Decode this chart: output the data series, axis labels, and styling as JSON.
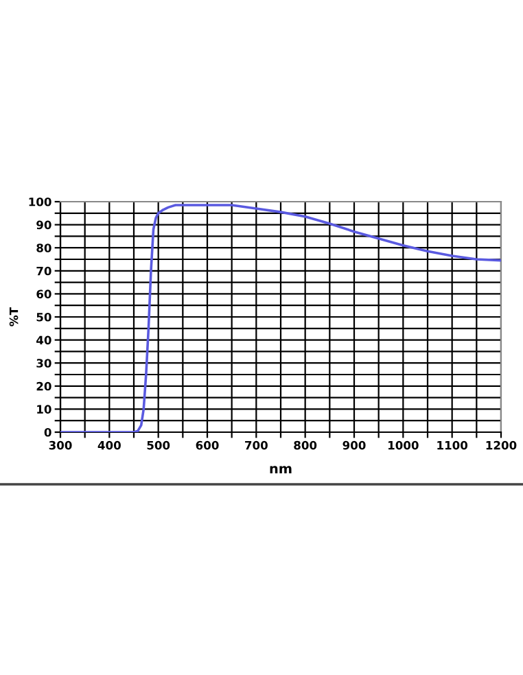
{
  "chart_data": {
    "type": "line",
    "xlabel": "nm",
    "ylabel": "%T",
    "series": [
      {
        "color": "#5a5ae0",
        "x": [
          300,
          350,
          400,
          450,
          458,
          465,
          470,
          475,
          480,
          485,
          490,
          495,
          500,
          510,
          520,
          535,
          550,
          600,
          650,
          700,
          750,
          800,
          850,
          900,
          950,
          1000,
          1050,
          1100,
          1150,
          1200
        ],
        "values": [
          0,
          0,
          0,
          0,
          0.5,
          3,
          10,
          25,
          45,
          70,
          88,
          93,
          95,
          96.5,
          97.5,
          98.5,
          98.5,
          98.5,
          98.5,
          97,
          95.5,
          93.5,
          90.5,
          87,
          84,
          81,
          78.5,
          76.5,
          75,
          74.5
        ]
      }
    ],
    "xlim": [
      300,
      1200
    ],
    "ylim": [
      0,
      100
    ],
    "xticks": [
      300,
      {
        "value": 350,
        "label": null
      },
      400,
      {
        "value": 450,
        "label": null
      },
      500,
      {
        "value": 550,
        "label": null
      },
      600,
      {
        "value": 650,
        "label": null
      },
      700,
      {
        "value": 750,
        "label": null
      },
      800,
      {
        "value": 850,
        "label": null
      },
      900,
      {
        "value": 950,
        "label": null
      },
      1000,
      {
        "value": 1050,
        "label": null
      },
      1100,
      {
        "value": 1150,
        "label": null
      },
      1200
    ],
    "yticks": [
      0,
      {
        "value": 5,
        "label": null
      },
      10,
      {
        "value": 15,
        "label": null
      },
      20,
      {
        "value": 25,
        "label": null
      },
      30,
      {
        "value": 35,
        "label": null
      },
      40,
      {
        "value": 45,
        "label": null
      },
      50,
      {
        "value": 55,
        "label": null
      },
      60,
      {
        "value": 65,
        "label": null
      },
      70,
      {
        "value": 75,
        "label": null
      },
      80,
      {
        "value": 85,
        "label": null
      },
      90,
      {
        "value": 95,
        "label": null
      },
      100
    ],
    "grid": true
  }
}
